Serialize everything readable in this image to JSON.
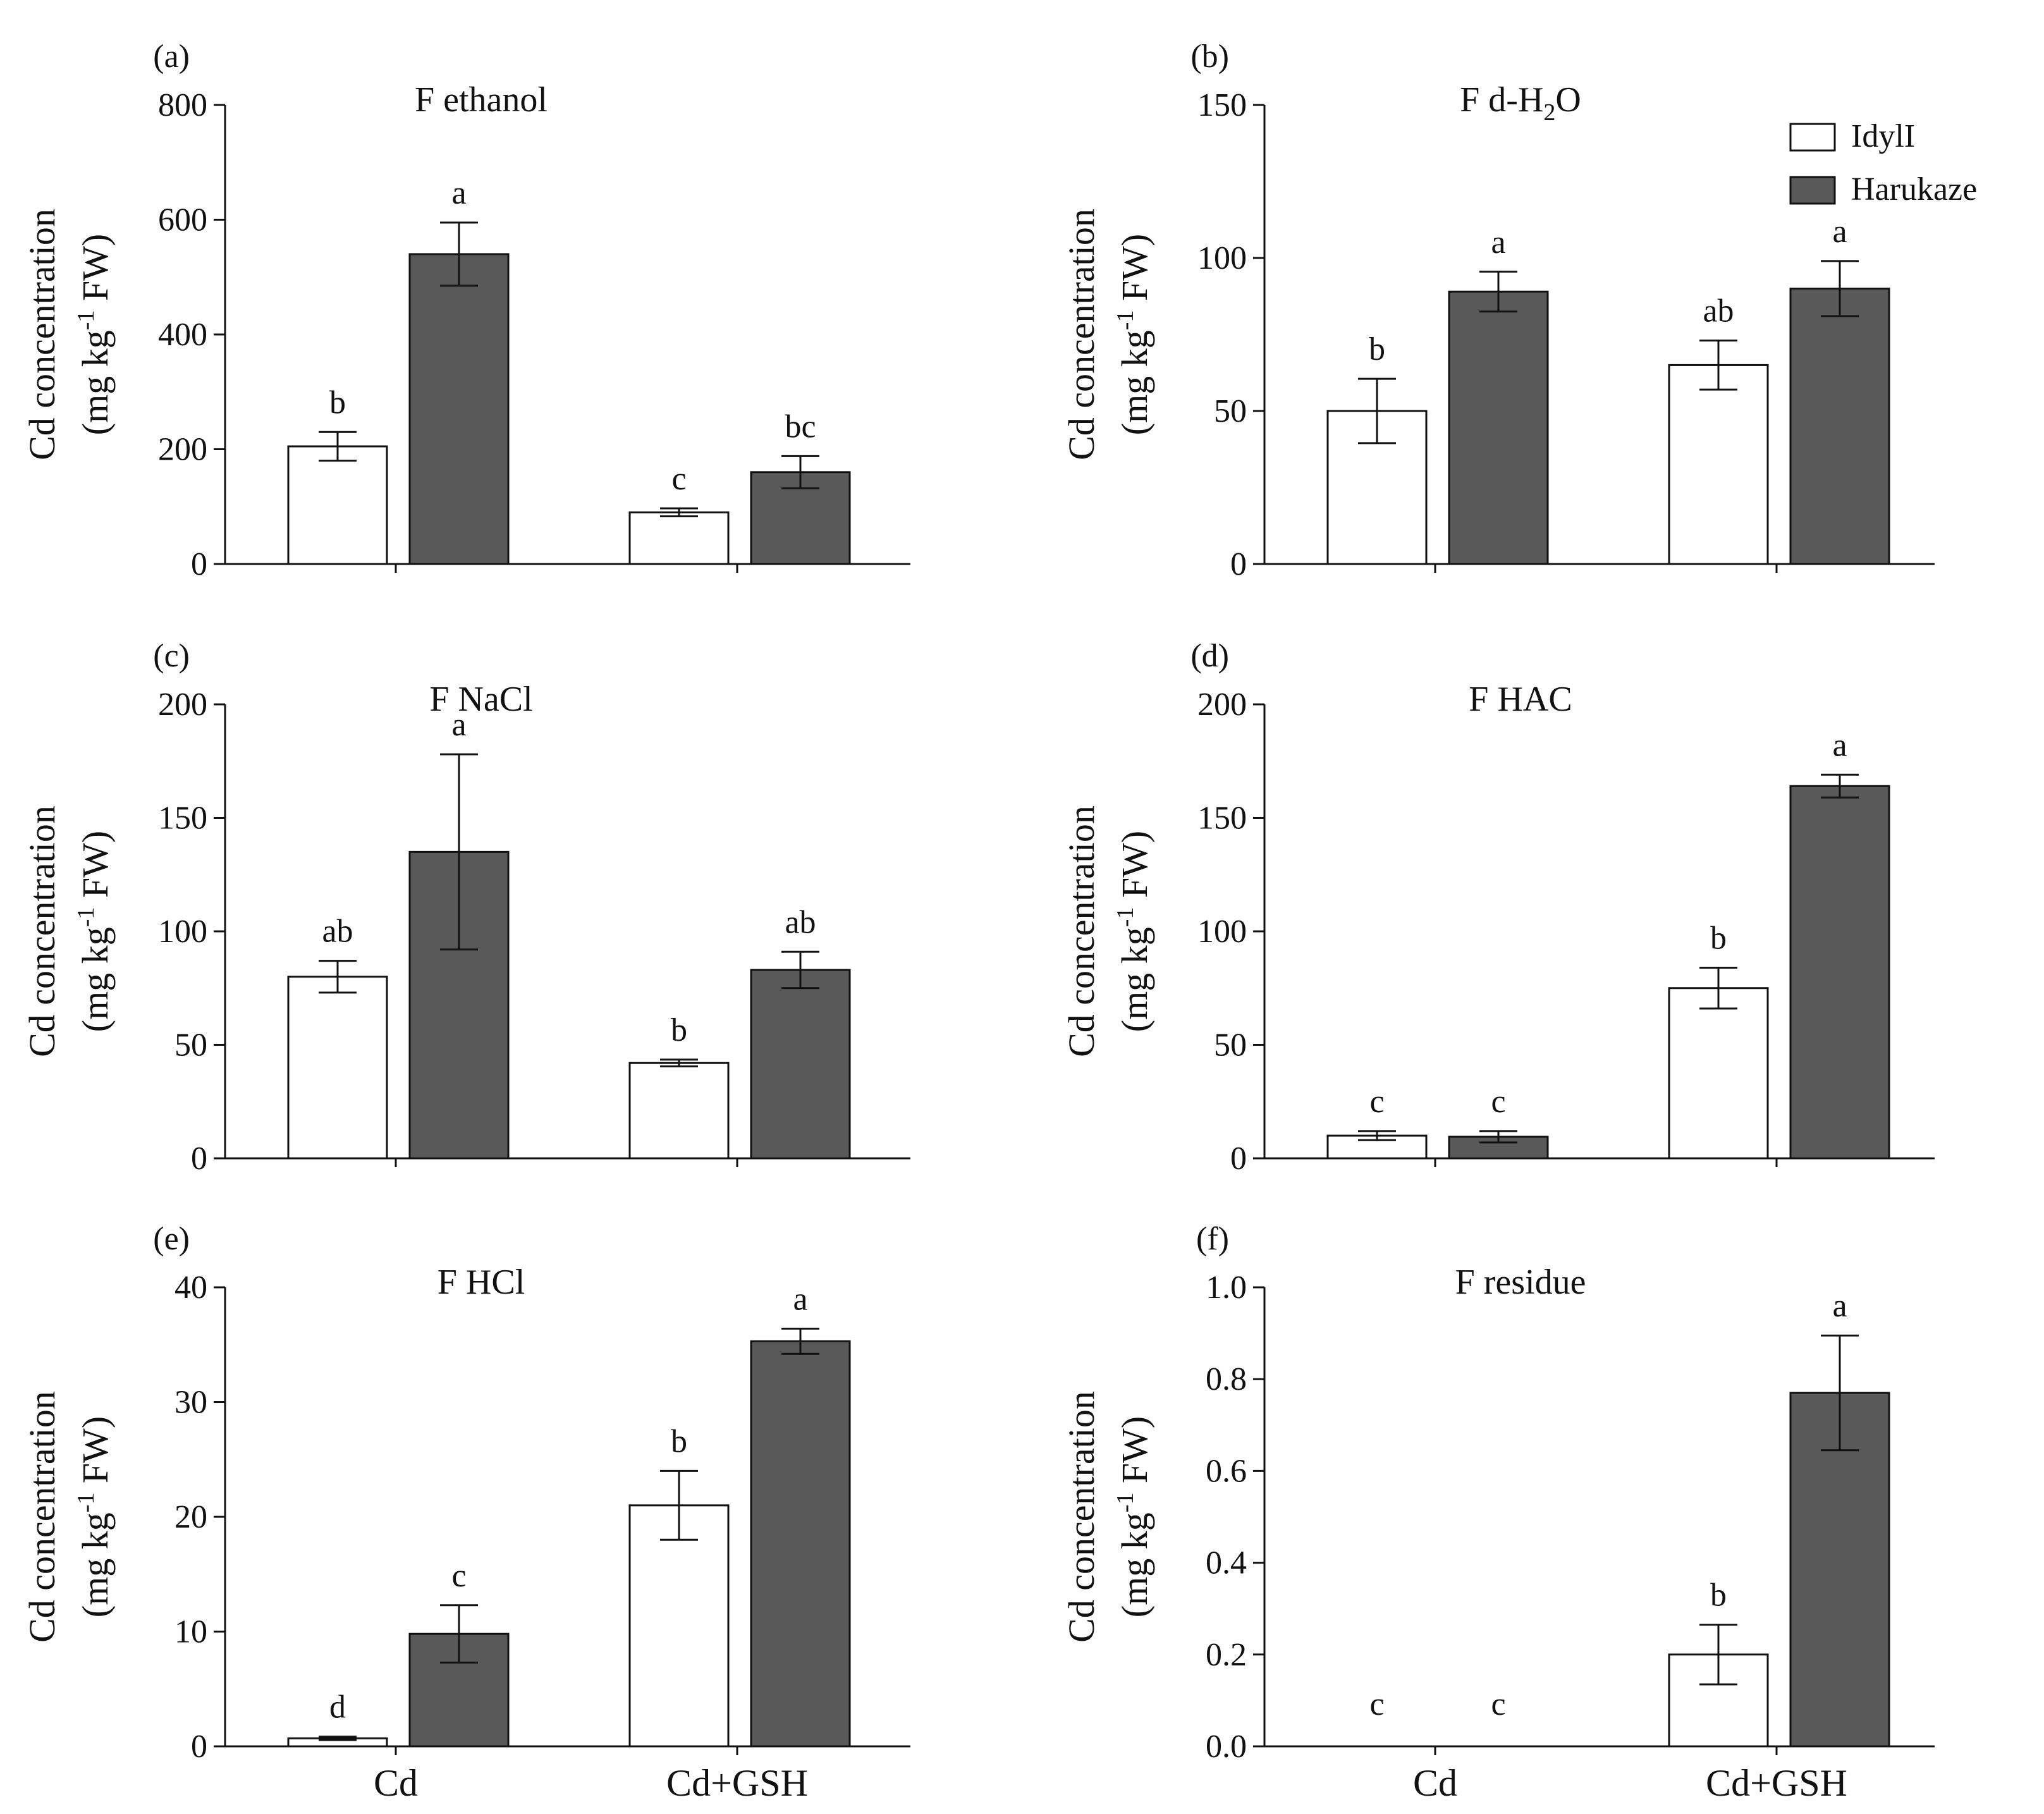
{
  "colors": {
    "idyll_fill": "#ffffff",
    "harukaze_fill": "#595959",
    "stroke": "#111111"
  },
  "legend": {
    "items": [
      {
        "label": "IdylI",
        "color": "#ffffff"
      },
      {
        "label": "Harukaze",
        "color": "#595959"
      }
    ]
  },
  "chart_data": [
    {
      "type": "bar",
      "panel": "(a)",
      "title": "F ethanol",
      "ylabel_line1": "Cd concentration",
      "ylabel_line2_pre": "(mg kg",
      "ylabel_sup": "-1",
      "ylabel_line2_post": " FW)",
      "categories": [
        "Cd",
        "Cd+GSH"
      ],
      "show_category_labels": false,
      "ylim": [
        0,
        800
      ],
      "yticks": [
        "0",
        "200",
        "400",
        "600",
        "800"
      ],
      "series": [
        {
          "name": "IdylI",
          "values": [
            205,
            90
          ],
          "errors": [
            25,
            7
          ],
          "letters": [
            "b",
            "c"
          ]
        },
        {
          "name": "Harukaze",
          "values": [
            540,
            160
          ],
          "errors": [
            55,
            28
          ],
          "letters": [
            "a",
            "bc"
          ]
        }
      ]
    },
    {
      "type": "bar",
      "panel": "(b)",
      "title": "F d-H",
      "title_sub": "2",
      "title_post": "O",
      "ylabel_line1": "Cd concentration",
      "ylabel_line2_pre": "(mg kg",
      "ylabel_sup": "-1",
      "ylabel_line2_post": " FW)",
      "categories": [
        "Cd",
        "Cd+GSH"
      ],
      "show_category_labels": false,
      "ylim": [
        0,
        150
      ],
      "yticks": [
        "0",
        "50",
        "100",
        "150"
      ],
      "series": [
        {
          "name": "IdylI",
          "values": [
            50,
            65
          ],
          "errors": [
            10.5,
            8
          ],
          "letters": [
            "b",
            "ab"
          ]
        },
        {
          "name": "Harukaze",
          "values": [
            89,
            90
          ],
          "errors": [
            6.5,
            9
          ],
          "letters": [
            "a",
            "a"
          ]
        }
      ]
    },
    {
      "type": "bar",
      "panel": "(c)",
      "title": "F NaCl",
      "ylabel_line1": "Cd concentration",
      "ylabel_line2_pre": "(mg kg",
      "ylabel_sup": "-1",
      "ylabel_line2_post": " FW)",
      "categories": [
        "Cd",
        "Cd+GSH"
      ],
      "show_category_labels": false,
      "ylim": [
        0,
        200
      ],
      "yticks": [
        "0",
        "50",
        "100",
        "150",
        "200"
      ],
      "series": [
        {
          "name": "IdylI",
          "values": [
            80,
            42
          ],
          "errors": [
            7,
            1.5
          ],
          "letters": [
            "ab",
            "b"
          ]
        },
        {
          "name": "Harukaze",
          "values": [
            135,
            83
          ],
          "errors": [
            43,
            8
          ],
          "letters": [
            "a",
            "ab"
          ]
        }
      ]
    },
    {
      "type": "bar",
      "panel": "(d)",
      "title": "F HAC",
      "ylabel_line1": "Cd concentration",
      "ylabel_line2_pre": "(mg kg",
      "ylabel_sup": "-1",
      "ylabel_line2_post": " FW)",
      "categories": [
        "Cd",
        "Cd+GSH"
      ],
      "show_category_labels": false,
      "ylim": [
        0,
        200
      ],
      "yticks": [
        "0",
        "50",
        "100",
        "150",
        "200"
      ],
      "series": [
        {
          "name": "IdylI",
          "values": [
            10,
            75
          ],
          "errors": [
            2,
            9
          ],
          "letters": [
            "c",
            "b"
          ]
        },
        {
          "name": "Harukaze",
          "values": [
            9.5,
            164
          ],
          "errors": [
            2.5,
            5
          ],
          "letters": [
            "c",
            "a"
          ]
        }
      ]
    },
    {
      "type": "bar",
      "panel": "(e)",
      "title": "F HCl",
      "ylabel_line1": "Cd concentration",
      "ylabel_line2_pre": "(mg kg",
      "ylabel_sup": "-1",
      "ylabel_line2_post": " FW)",
      "categories": [
        "Cd",
        "Cd+GSH"
      ],
      "show_category_labels": true,
      "ylim": [
        0,
        40
      ],
      "yticks": [
        "0",
        "10",
        "20",
        "30",
        "40"
      ],
      "series": [
        {
          "name": "IdylI",
          "values": [
            0.7,
            21
          ],
          "errors": [
            0.15,
            3
          ],
          "letters": [
            "d",
            "b"
          ]
        },
        {
          "name": "Harukaze",
          "values": [
            9.8,
            35.3
          ],
          "errors": [
            2.5,
            1.1
          ],
          "letters": [
            "c",
            "a"
          ]
        }
      ]
    },
    {
      "type": "bar",
      "panel": "(f)",
      "title": "F residue",
      "ylabel_line1": "Cd concentration",
      "ylabel_line2_pre": "(mg kg",
      "ylabel_sup": "-1",
      "ylabel_line2_post": " FW)",
      "categories": [
        "Cd",
        "Cd+GSH"
      ],
      "show_category_labels": true,
      "ylim": [
        0,
        1.0
      ],
      "yticks": [
        "0.0",
        "0.2",
        "0.4",
        "0.6",
        "0.8",
        "1.0"
      ],
      "series": [
        {
          "name": "IdylI",
          "values": [
            0,
            0.2
          ],
          "errors": [
            0,
            0.065
          ],
          "letters": [
            "c",
            "b"
          ]
        },
        {
          "name": "Harukaze",
          "values": [
            0,
            0.77
          ],
          "errors": [
            0,
            0.125
          ],
          "letters": [
            "c",
            "a"
          ]
        }
      ]
    }
  ]
}
